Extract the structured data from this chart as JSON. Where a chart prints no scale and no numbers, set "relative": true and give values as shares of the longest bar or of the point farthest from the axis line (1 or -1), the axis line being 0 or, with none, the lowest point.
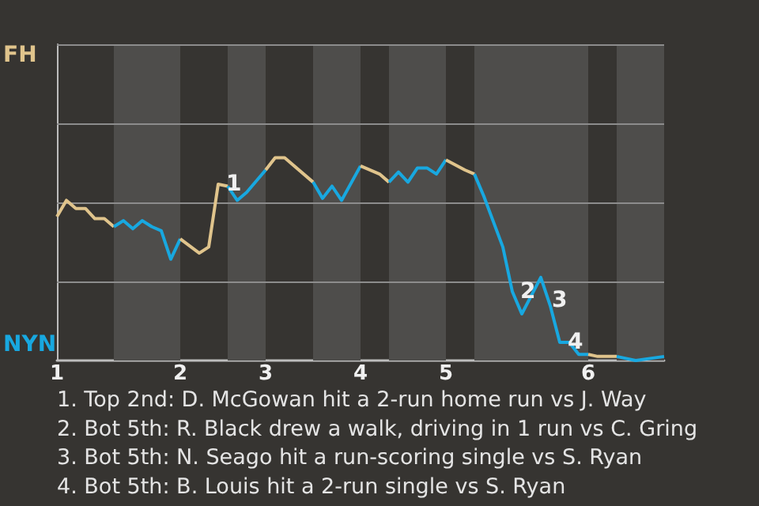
{
  "chart_data": {
    "type": "line",
    "relative": true,
    "categories": [
      "1",
      null,
      null,
      null,
      null,
      null,
      null,
      null,
      null,
      null,
      null,
      null,
      null,
      "2",
      null,
      null,
      null,
      null,
      null,
      null,
      null,
      null,
      "3",
      null,
      null,
      null,
      null,
      null,
      null,
      null,
      null,
      null,
      "4",
      null,
      null,
      null,
      null,
      null,
      null,
      null,
      null,
      "5",
      null,
      null,
      null,
      null,
      null,
      null,
      null,
      null,
      null,
      null,
      null,
      null,
      null,
      null,
      "6",
      null,
      null,
      null,
      null,
      null,
      null,
      null,
      null
    ],
    "marker": "none",
    "line_style": "solid",
    "ref_lines": [
      {
        "axis": "y",
        "value": 0.39,
        "color": "#8c8c8c"
      },
      {
        "axis": "y",
        "value": 0.78,
        "color": "#8c8c8c"
      },
      {
        "axis": "y",
        "value": 1.17,
        "color": "#8c8c8c"
      },
      {
        "axis": "y",
        "value": 1.56,
        "color": "#8c8c8c"
      }
    ],
    "series": [
      {
        "color": "#e0c48c",
        "values": [
          0.71,
          0.79,
          0.75,
          0.75,
          0.7,
          0.7,
          0.66,
          null,
          null,
          null,
          null,
          null,
          null,
          null,
          null,
          null,
          null,
          null,
          null,
          null,
          null,
          null,
          null,
          null,
          null,
          null,
          null,
          null,
          null,
          null,
          null,
          null,
          null,
          null,
          null,
          null,
          null,
          null,
          null,
          null,
          null,
          null,
          null,
          null,
          null,
          null,
          null,
          null,
          null,
          null,
          null,
          null,
          null,
          null,
          null,
          null,
          null,
          null,
          null,
          null,
          null,
          null,
          null,
          null,
          null
        ]
      },
      {
        "color": "#18a8e0",
        "values": [
          null,
          null,
          null,
          null,
          null,
          null,
          0.66,
          0.69,
          0.65,
          0.69,
          0.66,
          0.64,
          0.5,
          0.6,
          null,
          null,
          null,
          null,
          null,
          null,
          null,
          null,
          null,
          null,
          null,
          null,
          null,
          null,
          null,
          null,
          null,
          null,
          null,
          null,
          null,
          null,
          null,
          null,
          null,
          null,
          null,
          null,
          null,
          null,
          null,
          null,
          null,
          null,
          null,
          null,
          null,
          null,
          null,
          null,
          null,
          null,
          null,
          null,
          null,
          null,
          null,
          null,
          null,
          null,
          null
        ]
      },
      {
        "color": "#e0c48c",
        "values": [
          null,
          null,
          null,
          null,
          null,
          null,
          null,
          null,
          null,
          null,
          null,
          null,
          null,
          0.6,
          null,
          0.53,
          0.56,
          0.87,
          0.86,
          null,
          null,
          null,
          null,
          null,
          null,
          null,
          null,
          null,
          null,
          null,
          null,
          null,
          null,
          null,
          null,
          null,
          null,
          null,
          null,
          null,
          null,
          null,
          null,
          null,
          null,
          null,
          null,
          null,
          null,
          null,
          null,
          null,
          null,
          null,
          null,
          null,
          null,
          null,
          null,
          null,
          null,
          null,
          null,
          null,
          null
        ]
      },
      {
        "color": "#18a8e0",
        "values": [
          null,
          null,
          null,
          null,
          null,
          null,
          null,
          null,
          null,
          null,
          null,
          null,
          null,
          null,
          null,
          null,
          null,
          null,
          0.86,
          0.79,
          0.83,
          null,
          0.94,
          null,
          null,
          null,
          null,
          null,
          null,
          null,
          null,
          null,
          null,
          null,
          null,
          null,
          null,
          null,
          null,
          null,
          null,
          null,
          null,
          null,
          null,
          null,
          null,
          null,
          null,
          null,
          null,
          null,
          null,
          null,
          null,
          null,
          null,
          null,
          null,
          null,
          null,
          null,
          null,
          null,
          null
        ]
      },
      {
        "color": "#e0c48c",
        "values": [
          null,
          null,
          null,
          null,
          null,
          null,
          null,
          null,
          null,
          null,
          null,
          null,
          null,
          null,
          null,
          null,
          null,
          null,
          null,
          null,
          null,
          null,
          0.94,
          1,
          1,
          null,
          null,
          0.88,
          null,
          null,
          null,
          null,
          null,
          null,
          null,
          null,
          null,
          null,
          null,
          null,
          null,
          null,
          null,
          null,
          null,
          null,
          null,
          null,
          null,
          null,
          null,
          null,
          null,
          null,
          null,
          null,
          null,
          null,
          null,
          null,
          null,
          null,
          null,
          null,
          null
        ]
      },
      {
        "color": "#18a8e0",
        "values": [
          null,
          null,
          null,
          null,
          null,
          null,
          null,
          null,
          null,
          null,
          null,
          null,
          null,
          null,
          null,
          null,
          null,
          null,
          null,
          null,
          null,
          null,
          null,
          null,
          null,
          null,
          null,
          0.88,
          0.8,
          0.86,
          0.79,
          null,
          0.96,
          null,
          null,
          null,
          null,
          null,
          null,
          null,
          null,
          null,
          null,
          null,
          null,
          null,
          null,
          null,
          null,
          null,
          null,
          null,
          null,
          null,
          null,
          null,
          null,
          null,
          null,
          null,
          null,
          null,
          null,
          null,
          null
        ]
      },
      {
        "color": "#e0c48c",
        "values": [
          null,
          null,
          null,
          null,
          null,
          null,
          null,
          null,
          null,
          null,
          null,
          null,
          null,
          null,
          null,
          null,
          null,
          null,
          null,
          null,
          null,
          null,
          null,
          null,
          null,
          null,
          null,
          null,
          null,
          null,
          null,
          null,
          0.96,
          null,
          0.92,
          0.88,
          null,
          null,
          null,
          null,
          null,
          null,
          null,
          null,
          null,
          null,
          null,
          null,
          null,
          null,
          null,
          null,
          null,
          null,
          null,
          null,
          null,
          null,
          null,
          null,
          null,
          null,
          null,
          null,
          null
        ]
      },
      {
        "color": "#18a8e0",
        "values": [
          null,
          null,
          null,
          null,
          null,
          null,
          null,
          null,
          null,
          null,
          null,
          null,
          null,
          null,
          null,
          null,
          null,
          null,
          null,
          null,
          null,
          null,
          null,
          null,
          null,
          null,
          null,
          null,
          null,
          null,
          null,
          null,
          null,
          null,
          null,
          0.88,
          0.93,
          0.88,
          0.95,
          0.95,
          0.92,
          0.99,
          null,
          null,
          null,
          null,
          null,
          null,
          null,
          null,
          null,
          null,
          null,
          null,
          null,
          null,
          null,
          null,
          null,
          null,
          null,
          null,
          null,
          null,
          null
        ]
      },
      {
        "color": "#e0c48c",
        "values": [
          null,
          null,
          null,
          null,
          null,
          null,
          null,
          null,
          null,
          null,
          null,
          null,
          null,
          null,
          null,
          null,
          null,
          null,
          null,
          null,
          null,
          null,
          null,
          null,
          null,
          null,
          null,
          null,
          null,
          null,
          null,
          null,
          null,
          null,
          null,
          null,
          null,
          null,
          null,
          null,
          null,
          0.99,
          null,
          0.94,
          0.92,
          null,
          null,
          null,
          null,
          null,
          null,
          null,
          null,
          null,
          null,
          null,
          null,
          null,
          null,
          null,
          null,
          null,
          null,
          null,
          null
        ]
      },
      {
        "color": "#18a8e0",
        "values": [
          null,
          null,
          null,
          null,
          null,
          null,
          null,
          null,
          null,
          null,
          null,
          null,
          null,
          null,
          null,
          null,
          null,
          null,
          null,
          null,
          null,
          null,
          null,
          null,
          null,
          null,
          null,
          null,
          null,
          null,
          null,
          null,
          null,
          null,
          null,
          null,
          null,
          null,
          null,
          null,
          null,
          null,
          null,
          null,
          0.92,
          0.81,
          null,
          0.56,
          0.34,
          0.23,
          null,
          0.41,
          0.27,
          0.09,
          0.09,
          0.03,
          0.03,
          null,
          null,
          null,
          null,
          null,
          null,
          null,
          null
        ]
      },
      {
        "color": "#e0c48c",
        "values": [
          null,
          null,
          null,
          null,
          null,
          null,
          null,
          null,
          null,
          null,
          null,
          null,
          null,
          null,
          null,
          null,
          null,
          null,
          null,
          null,
          null,
          null,
          null,
          null,
          null,
          null,
          null,
          null,
          null,
          null,
          null,
          null,
          null,
          null,
          null,
          null,
          null,
          null,
          null,
          null,
          null,
          null,
          null,
          null,
          null,
          null,
          null,
          null,
          null,
          null,
          null,
          null,
          null,
          null,
          null,
          null,
          0.03,
          0.02,
          null,
          0.02,
          null,
          null,
          null,
          null,
          null
        ]
      },
      {
        "color": "#18a8e0",
        "values": [
          null,
          null,
          null,
          null,
          null,
          null,
          null,
          null,
          null,
          null,
          null,
          null,
          null,
          null,
          null,
          null,
          null,
          null,
          null,
          null,
          null,
          null,
          null,
          null,
          null,
          null,
          null,
          null,
          null,
          null,
          null,
          null,
          null,
          null,
          null,
          null,
          null,
          null,
          null,
          null,
          null,
          null,
          null,
          null,
          null,
          null,
          null,
          null,
          null,
          null,
          null,
          null,
          null,
          null,
          null,
          null,
          null,
          null,
          null,
          0.02,
          null,
          0.0,
          null,
          null,
          0.02
        ]
      }
    ],
    "annotations": [
      "FH",
      "NYN",
      "3",
      {
        "text": "1",
        "y": 0.87
      },
      {
        "text": "2",
        "y": 0.34
      },
      {
        "text": "4",
        "y": 0.09
      },
      "1. Top 2nd: D. McGowan hit a 2-run home run vs J. Way",
      "2. Bot 5th: R. Black drew a walk, driving in 1 run vs C. Gring",
      "3. Bot 5th: N. Seago hit a run-scoring single vs S. Ryan",
      "4. Bot 5th: B. Louis hit a 2-run single vs S. Ryan"
    ]
  }
}
